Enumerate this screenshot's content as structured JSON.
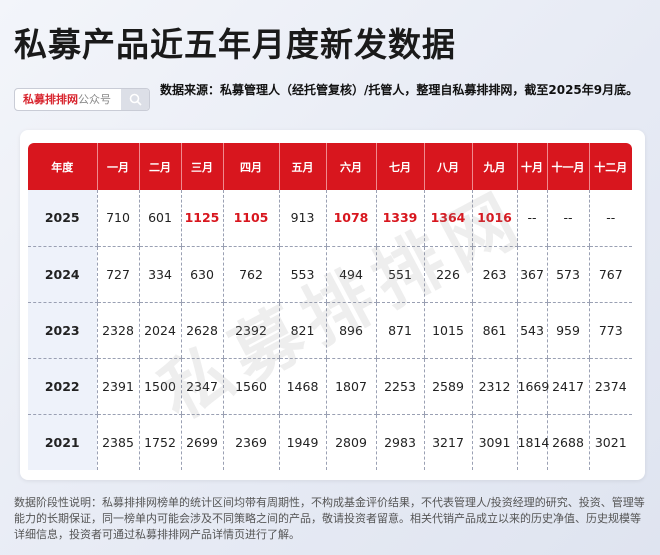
{
  "title": "私募产品近五年月度新发数据",
  "search": {
    "brand": "私募排排网",
    "suffix": "公众号",
    "icon": "search-icon"
  },
  "source": "数据来源：私募管理人（经托管复核）/托管人，整理自私募排排网，截至2025年9月底。",
  "watermark": "私募排排网",
  "table": {
    "headers": [
      "年度",
      "一月",
      "二月",
      "三月",
      "四月",
      "五月",
      "六月",
      "七月",
      "八月",
      "九月",
      "十月",
      "十一月",
      "十二月"
    ],
    "rows": [
      {
        "year": "2025",
        "values": [
          "710",
          "601",
          "1125",
          "1105",
          "913",
          "1078",
          "1339",
          "1364",
          "1016",
          "--",
          "--",
          "--"
        ],
        "highlight": [
          false,
          false,
          true,
          true,
          false,
          true,
          true,
          true,
          true,
          false,
          false,
          false
        ]
      },
      {
        "year": "2024",
        "values": [
          "727",
          "334",
          "630",
          "762",
          "553",
          "494",
          "551",
          "226",
          "263",
          "367",
          "573",
          "767"
        ]
      },
      {
        "year": "2023",
        "values": [
          "2328",
          "2024",
          "2628",
          "2392",
          "821",
          "896",
          "871",
          "1015",
          "861",
          "543",
          "959",
          "773"
        ]
      },
      {
        "year": "2022",
        "values": [
          "2391",
          "1500",
          "2347",
          "1560",
          "1468",
          "1807",
          "2253",
          "2589",
          "2312",
          "1669",
          "2417",
          "2374"
        ]
      },
      {
        "year": "2021",
        "values": [
          "2385",
          "1752",
          "2699",
          "2369",
          "1949",
          "2809",
          "2983",
          "3217",
          "3091",
          "1814",
          "2688",
          "3021"
        ]
      }
    ]
  },
  "note": "数据阶段性说明：私募排排网榜单的统计区间均带有周期性，不构成基金评价结果，不代表管理人/投资经理的研究、投资、管理等能力的长期保证，同一榜单内可能会涉及不同策略之间的产品，敬请投资者留意。相关代销产品成立以来的历史净值、历史规模等详细信息，投资者可通过私募排排网产品详情页进行了解。",
  "colors": {
    "accent": "#d8161e"
  }
}
